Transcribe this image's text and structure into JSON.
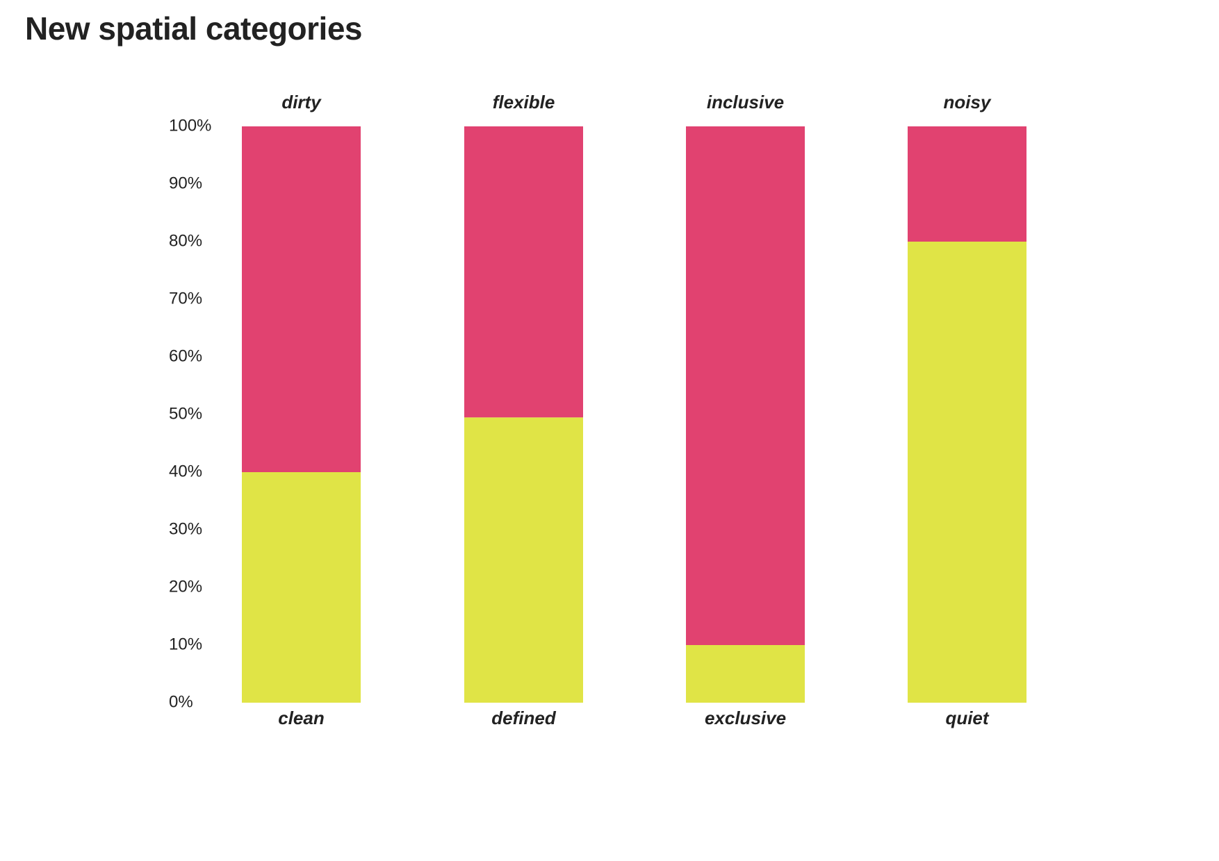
{
  "title": "New spatial categories",
  "colors": {
    "bottom": "#e0e446",
    "top": "#e14270",
    "text": "#222222"
  },
  "chart_data": {
    "type": "bar",
    "stacked": true,
    "title": "New spatial categories",
    "xlabel": "",
    "ylabel": "",
    "ylim": [
      0,
      100
    ],
    "y_ticks": [
      "0%",
      "10%",
      "20%",
      "30%",
      "40%",
      "50%",
      "60%",
      "70%",
      "80%",
      "90%",
      "100%"
    ],
    "grid": false,
    "legend": "none",
    "categories_bottom": [
      "clean",
      "defined",
      "exclusive",
      "quiet"
    ],
    "categories_top": [
      "dirty",
      "flexible",
      "inclusive",
      "noisy"
    ],
    "series": [
      {
        "values": [
          40,
          49.5,
          10,
          80
        ]
      },
      {
        "values": [
          60,
          50.5,
          90,
          20
        ]
      }
    ]
  }
}
